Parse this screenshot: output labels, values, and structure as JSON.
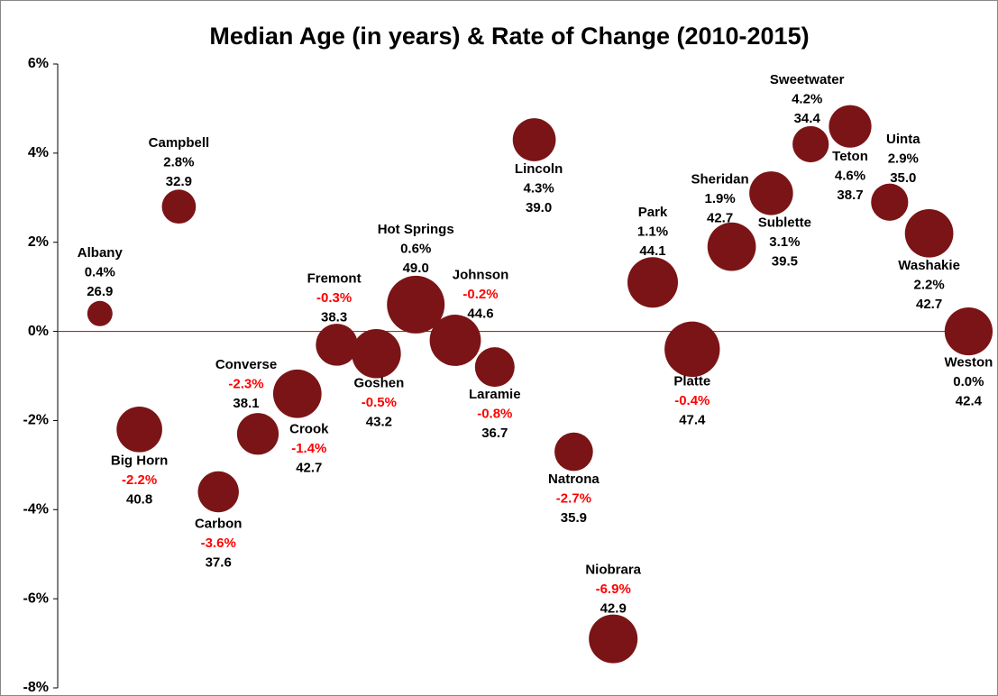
{
  "chart_data": {
    "type": "bubble",
    "title": "Median Age (in years) & Rate of Change (2010-2015)",
    "categories": [
      "Albany",
      "Big Horn",
      "Campbell",
      "Carbon",
      "Converse",
      "Crook",
      "Fremont",
      "Goshen",
      "Hot Springs",
      "Johnson",
      "Laramie",
      "Lincoln",
      "Natrona",
      "Niobrara",
      "Park",
      "Platte",
      "Sheridan",
      "Sublette",
      "Sweetwater",
      "Teton",
      "Uinta",
      "Washakie",
      "Weston"
    ],
    "values": [
      0.4,
      -2.2,
      2.8,
      -3.6,
      -2.3,
      -1.4,
      -0.3,
      -0.5,
      0.6,
      -0.2,
      -0.8,
      4.3,
      -2.7,
      -6.9,
      1.1,
      -0.4,
      1.9,
      3.1,
      4.2,
      4.6,
      2.9,
      2.2,
      0.0
    ],
    "value_labels": [
      "0.4%",
      "-2.2%",
      "2.8%",
      "-3.6%",
      "-2.3%",
      "-1.4%",
      "-0.3%",
      "-0.5%",
      "0.6%",
      "-0.2%",
      "-0.8%",
      "4.3%",
      "-2.7%",
      "-6.9%",
      "1.1%",
      "-0.4%",
      "1.9%",
      "3.1%",
      "4.2%",
      "4.6%",
      "2.9%",
      "2.2%",
      "0.0%"
    ],
    "sizes": [
      26.9,
      40.8,
      32.9,
      37.6,
      38.1,
      42.7,
      38.3,
      43.2,
      49.0,
      44.6,
      36.7,
      39.0,
      35.9,
      42.9,
      44.1,
      47.4,
      42.7,
      39.5,
      34.4,
      38.7,
      35.0,
      42.7,
      42.4
    ],
    "size_labels": [
      "26.9",
      "40.8",
      "32.9",
      "37.6",
      "38.1",
      "42.7",
      "38.3",
      "43.2",
      "49.0",
      "44.6",
      "36.7",
      "39.0",
      "35.9",
      "42.9",
      "44.1",
      "47.4",
      "42.7",
      "39.5",
      "34.4",
      "38.7",
      "35.0",
      "42.7",
      "42.4"
    ],
    "color": "#7b1416",
    "negative_label_color": "#ff0000",
    "zero_line_color": "#c00000",
    "ylim": [
      -8,
      6
    ],
    "yticks": [
      {
        "value": -8,
        "label": "-8%"
      },
      {
        "value": -6,
        "label": "-6%"
      },
      {
        "value": -4,
        "label": "-4%"
      },
      {
        "value": -2,
        "label": "-2%"
      },
      {
        "value": 0,
        "label": "0%"
      },
      {
        "value": 2,
        "label": "2%"
      },
      {
        "value": 4,
        "label": "4%"
      },
      {
        "value": 6,
        "label": "6%"
      }
    ]
  }
}
